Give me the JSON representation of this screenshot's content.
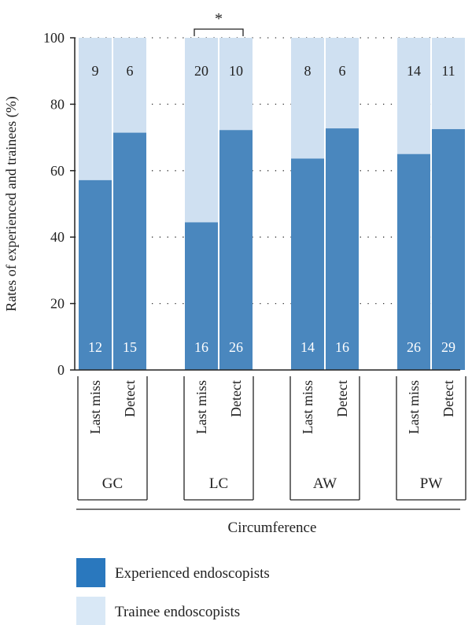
{
  "chart_data": {
    "type": "bar",
    "stacked": true,
    "ylabel": "Rates of experienced and trainees (%)",
    "xlabel": "Circumference",
    "ylim": [
      0,
      100
    ],
    "yticks": [
      0,
      20,
      40,
      60,
      80,
      100
    ],
    "grid": "dotted horizontal",
    "groups": [
      {
        "name": "GC",
        "categories": [
          "Last miss",
          "Detect"
        ],
        "experienced": [
          12,
          15
        ],
        "trainee": [
          9,
          6
        ]
      },
      {
        "name": "LC",
        "categories": [
          "Last miss",
          "Detect"
        ],
        "experienced": [
          16,
          26
        ],
        "trainee": [
          20,
          10
        ]
      },
      {
        "name": "AW",
        "categories": [
          "Last miss",
          "Detect"
        ],
        "experienced": [
          14,
          16
        ],
        "trainee": [
          8,
          6
        ]
      },
      {
        "name": "PW",
        "categories": [
          "Last miss",
          "Detect"
        ],
        "experienced": [
          26,
          29
        ],
        "trainee": [
          14,
          11
        ]
      }
    ],
    "significance": [
      {
        "group": "LC",
        "label": "*"
      }
    ],
    "legend": [
      {
        "name": "Experienced endoscopists",
        "color": "#4a87be"
      },
      {
        "name": "Trainee endoscopists",
        "color": "#cfe0f1"
      }
    ],
    "colors": {
      "experienced": "#4a87be",
      "trainee": "#cfe0f1",
      "legend_experienced": "#2a78be",
      "legend_trainee": "#d9e8f6"
    }
  }
}
